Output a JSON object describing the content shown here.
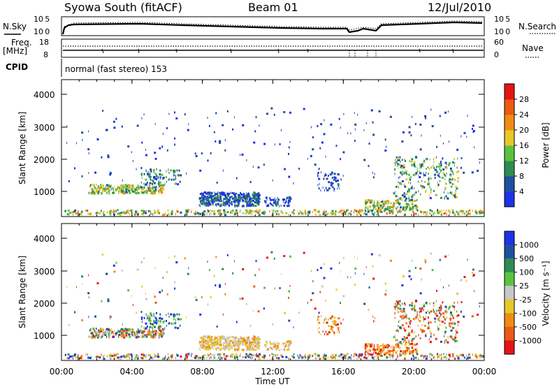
{
  "header": {
    "site": "Syowa South (fitACF)",
    "beam": "Beam 01",
    "date": "12/Jul/2010"
  },
  "status_panels": {
    "nsky_label": "N.Sky",
    "nsearch_label": "N.Search",
    "noise_ticks": [
      "10^5",
      "10^0"
    ],
    "freq_label": "Freq.",
    "freq_unit": "[MHz]",
    "freq_ticks": [
      "18",
      "8"
    ],
    "nave_label": "Nave",
    "nave_ticks": [
      "60",
      "0"
    ],
    "cpid_label": "CPID",
    "cpid_text": "normal (fast stereo) 153"
  },
  "colors": {
    "power_scale": [
      "#1e32e6",
      "#1e50a0",
      "#2e8c50",
      "#59c341",
      "#e6c828",
      "#f08c14",
      "#ea5a14",
      "#e61414"
    ],
    "velocity_scale": [
      "#1e32e6",
      "#1e50a0",
      "#2e8c50",
      "#59c341",
      "#c8c8c8",
      "#e6c828",
      "#f08c14",
      "#ea5a14",
      "#e61414"
    ]
  },
  "chart_data": [
    {
      "type": "heatmap",
      "name": "power",
      "ylabel": "Slant Range [km]",
      "yticks": [
        "4000",
        "3000",
        "2000",
        "1000"
      ],
      "ylim": [
        180,
        4600
      ],
      "colorbar_label": "Power [dB]",
      "colorbar_ticks": [
        "28",
        "24",
        "20",
        "16",
        "12",
        "8",
        "4"
      ],
      "colorbar_range": [
        0,
        32
      ]
    },
    {
      "type": "heatmap",
      "name": "velocity",
      "ylabel": "Slant Range [km]",
      "yticks": [
        "4000",
        "3000",
        "2000",
        "1000"
      ],
      "ylim": [
        180,
        4600
      ],
      "colorbar_label": "Velocity [m s⁻¹]",
      "colorbar_ticks": [
        "1000",
        "500",
        "100",
        "25",
        "-25",
        "-100",
        "-500",
        "-1000"
      ]
    }
  ],
  "time_axis": {
    "ticks": [
      "00:00",
      "04:00",
      "08:00",
      "12:00",
      "16:00",
      "20:00",
      "00:00"
    ],
    "label": "Time UT",
    "range_hours": [
      0,
      24
    ]
  }
}
